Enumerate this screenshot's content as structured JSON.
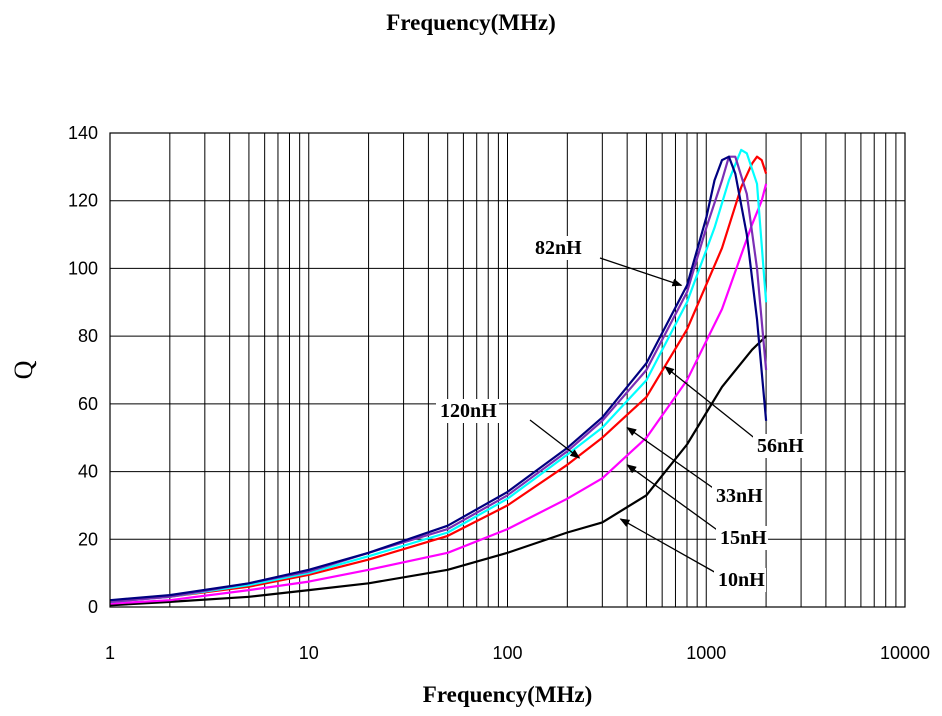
{
  "header": {
    "title": "Frequency(MHz)"
  },
  "chart_data": {
    "type": "line",
    "xscale": "log",
    "xlim": [
      1,
      10000
    ],
    "ylim": [
      0,
      140
    ],
    "xticks": [
      "1",
      "10",
      "100",
      "1000",
      "10000"
    ],
    "yticks": [
      "0",
      "20",
      "40",
      "60",
      "80",
      "100",
      "120",
      "140"
    ],
    "xlabel": "Frequency(MHz)",
    "ylabel": "Q",
    "grid": true,
    "series": [
      {
        "name": "10nH",
        "color": "#000000",
        "points": [
          [
            1,
            0.5
          ],
          [
            2,
            1.5
          ],
          [
            5,
            3
          ],
          [
            10,
            5
          ],
          [
            20,
            7
          ],
          [
            50,
            11
          ],
          [
            100,
            16
          ],
          [
            200,
            22
          ],
          [
            300,
            25
          ],
          [
            500,
            33
          ],
          [
            800,
            48
          ],
          [
            1200,
            65
          ],
          [
            1700,
            76
          ],
          [
            2000,
            80
          ]
        ]
      },
      {
        "name": "15nH",
        "color": "#ff00ff",
        "points": [
          [
            1,
            1
          ],
          [
            2,
            2
          ],
          [
            5,
            5
          ],
          [
            10,
            7.5
          ],
          [
            20,
            11
          ],
          [
            50,
            16
          ],
          [
            100,
            23
          ],
          [
            200,
            32
          ],
          [
            300,
            38
          ],
          [
            500,
            50
          ],
          [
            800,
            67
          ],
          [
            1200,
            88
          ],
          [
            1500,
            104
          ],
          [
            1700,
            113
          ],
          [
            1900,
            120
          ],
          [
            2000,
            125
          ]
        ]
      },
      {
        "name": "33nH",
        "color": "#ff0000",
        "points": [
          [
            1,
            1.5
          ],
          [
            2,
            3
          ],
          [
            5,
            6
          ],
          [
            10,
            9.5
          ],
          [
            20,
            14
          ],
          [
            50,
            21
          ],
          [
            100,
            30
          ],
          [
            200,
            42
          ],
          [
            300,
            50
          ],
          [
            500,
            62
          ],
          [
            800,
            82
          ],
          [
            1200,
            106
          ],
          [
            1500,
            124
          ],
          [
            1700,
            131
          ],
          [
            1800,
            133
          ],
          [
            1900,
            132
          ],
          [
            2000,
            128
          ]
        ]
      },
      {
        "name": "56nH",
        "color": "#00ffff",
        "points": [
          [
            1,
            1.5
          ],
          [
            2,
            3
          ],
          [
            5,
            6.5
          ],
          [
            10,
            10
          ],
          [
            20,
            15
          ],
          [
            50,
            22
          ],
          [
            100,
            32
          ],
          [
            200,
            45
          ],
          [
            300,
            53
          ],
          [
            500,
            67
          ],
          [
            800,
            90
          ],
          [
            1100,
            112
          ],
          [
            1300,
            126
          ],
          [
            1500,
            135
          ],
          [
            1600,
            134
          ],
          [
            1800,
            125
          ],
          [
            2000,
            90
          ]
        ]
      },
      {
        "name": "82nH",
        "color": "#7b2fb5",
        "points": [
          [
            1,
            1.5
          ],
          [
            2,
            3
          ],
          [
            5,
            7
          ],
          [
            10,
            10.5
          ],
          [
            20,
            16
          ],
          [
            50,
            23
          ],
          [
            100,
            33
          ],
          [
            200,
            46
          ],
          [
            300,
            55
          ],
          [
            500,
            70
          ],
          [
            800,
            93
          ],
          [
            1000,
            112
          ],
          [
            1200,
            126
          ],
          [
            1300,
            133
          ],
          [
            1400,
            133
          ],
          [
            1600,
            122
          ],
          [
            1800,
            100
          ],
          [
            2000,
            70
          ]
        ]
      },
      {
        "name": "120nH",
        "color": "#000080",
        "points": [
          [
            1,
            2
          ],
          [
            2,
            3.5
          ],
          [
            5,
            7
          ],
          [
            10,
            11
          ],
          [
            20,
            16
          ],
          [
            50,
            24
          ],
          [
            100,
            34
          ],
          [
            200,
            47
          ],
          [
            300,
            56
          ],
          [
            500,
            72
          ],
          [
            800,
            95
          ],
          [
            1000,
            115
          ],
          [
            1100,
            126
          ],
          [
            1200,
            132
          ],
          [
            1300,
            133
          ],
          [
            1400,
            128
          ],
          [
            1600,
            110
          ],
          [
            1800,
            85
          ],
          [
            2000,
            55
          ]
        ]
      }
    ],
    "annotations": [
      {
        "text": "82nH"
      },
      {
        "text": "120nH"
      },
      {
        "text": "56nH"
      },
      {
        "text": "33nH"
      },
      {
        "text": "15nH"
      },
      {
        "text": "10nH"
      }
    ]
  }
}
